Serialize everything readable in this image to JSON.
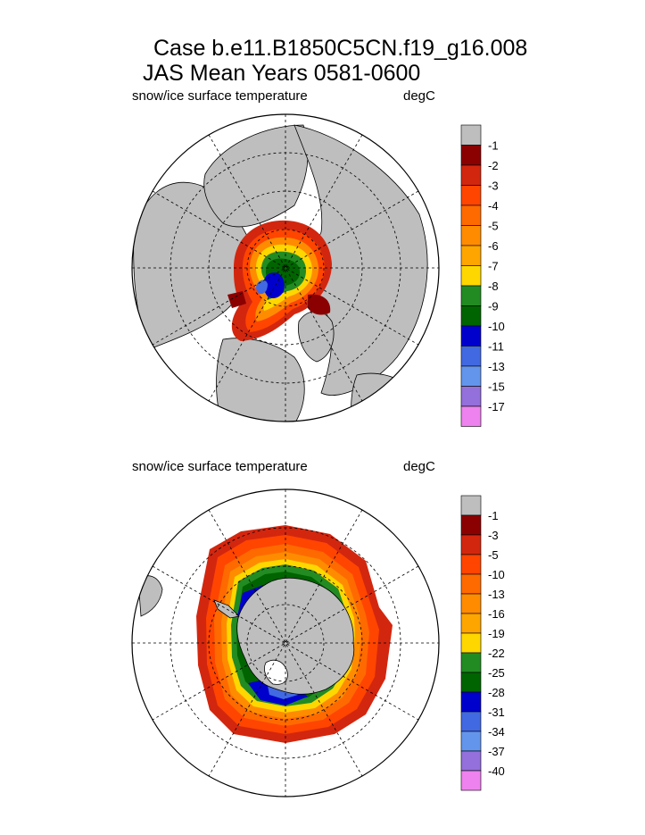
{
  "header": {
    "title_line1": "Case b.e11.B1850C5CN.f19_g16.008",
    "title_line2": "JAS Mean    Years 0581-0600"
  },
  "panels": [
    {
      "variable": "snow/ice surface temperature",
      "units": "degC",
      "hemisphere": "north",
      "colorbar": {
        "labels": [
          "-1",
          "-2",
          "-3",
          "-4",
          "-5",
          "-6",
          "-7",
          "-8",
          "-9",
          "-10",
          "-11",
          "-13",
          "-15",
          "-17"
        ],
        "colors": [
          "#bebebe",
          "#8b0000",
          "#d3260f",
          "#ff4500",
          "#ff6a00",
          "#ff8c00",
          "#ffa500",
          "#ffd700",
          "#228b22",
          "#006400",
          "#0000cd",
          "#4169e1",
          "#6495ed",
          "#9370db",
          "#ee82ee"
        ]
      }
    },
    {
      "variable": "snow/ice surface temperature",
      "units": "degC",
      "hemisphere": "south",
      "colorbar": {
        "labels": [
          "-1",
          "-3",
          "-5",
          "-10",
          "-13",
          "-16",
          "-19",
          "-22",
          "-25",
          "-28",
          "-31",
          "-34",
          "-37",
          "-40"
        ],
        "colors": [
          "#bebebe",
          "#8b0000",
          "#d3260f",
          "#ff4500",
          "#ff6a00",
          "#ff8c00",
          "#ffa500",
          "#ffd700",
          "#228b22",
          "#006400",
          "#0000cd",
          "#4169e1",
          "#6495ed",
          "#9370db",
          "#ee82ee"
        ]
      }
    }
  ]
}
